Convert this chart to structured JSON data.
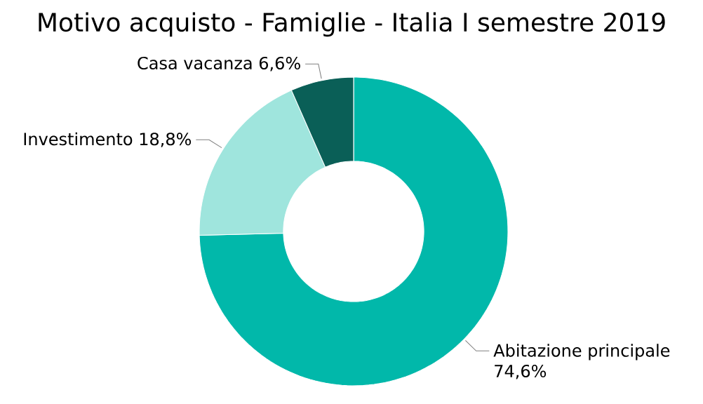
{
  "chart_data": {
    "type": "donut",
    "title": "Motivo acquisto - Famiglie - Italia I semestre 2019",
    "categories": [
      "Abitazione principale",
      "Investimento",
      "Casa vacanza"
    ],
    "values": [
      74.6,
      18.8,
      6.6
    ],
    "value_labels": [
      "74,6%",
      "18,8%",
      "6,6%"
    ],
    "colors": [
      "#01b8aa",
      "#9fe5dd",
      "#0a5f57"
    ]
  }
}
